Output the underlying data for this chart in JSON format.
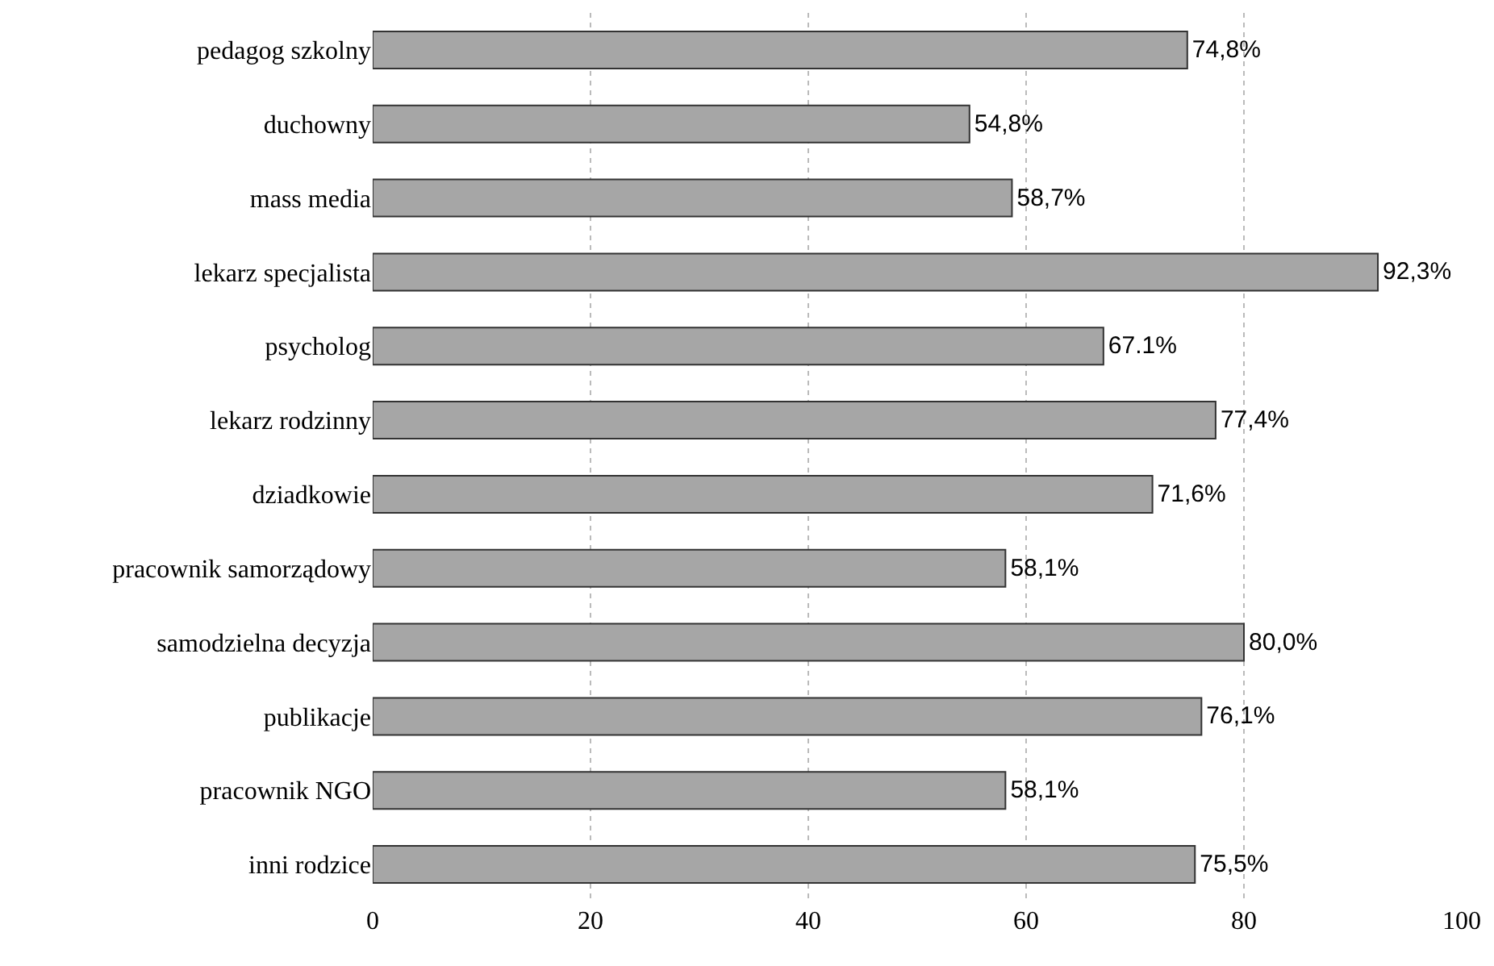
{
  "chart_data": {
    "type": "bar",
    "orientation": "horizontal",
    "categories": [
      "pedagog szkolny",
      "duchowny",
      "mass media",
      "lekarz specjalista",
      "psycholog",
      "lekarz rodzinny",
      "dziadkowie",
      "pracownik samorządowy",
      "samodzielna decyzja",
      "publikacje",
      "pracownik NGO",
      "inni rodzice"
    ],
    "values": [
      74.8,
      54.8,
      58.7,
      92.3,
      67.1,
      77.4,
      71.6,
      58.1,
      80.0,
      76.1,
      58.1,
      75.5
    ],
    "value_labels": [
      "74,8%",
      "54,8%",
      "58,7%",
      "92,3%",
      "67.1%",
      "77,4%",
      "71,6%",
      "58,1%",
      "80,0%",
      "76,1%",
      "58,1%",
      "75,5%"
    ],
    "color": "#a6a6a6",
    "xlim": [
      0,
      100
    ],
    "xticks": [
      0,
      20,
      40,
      60,
      80,
      100
    ],
    "grid": "x"
  }
}
